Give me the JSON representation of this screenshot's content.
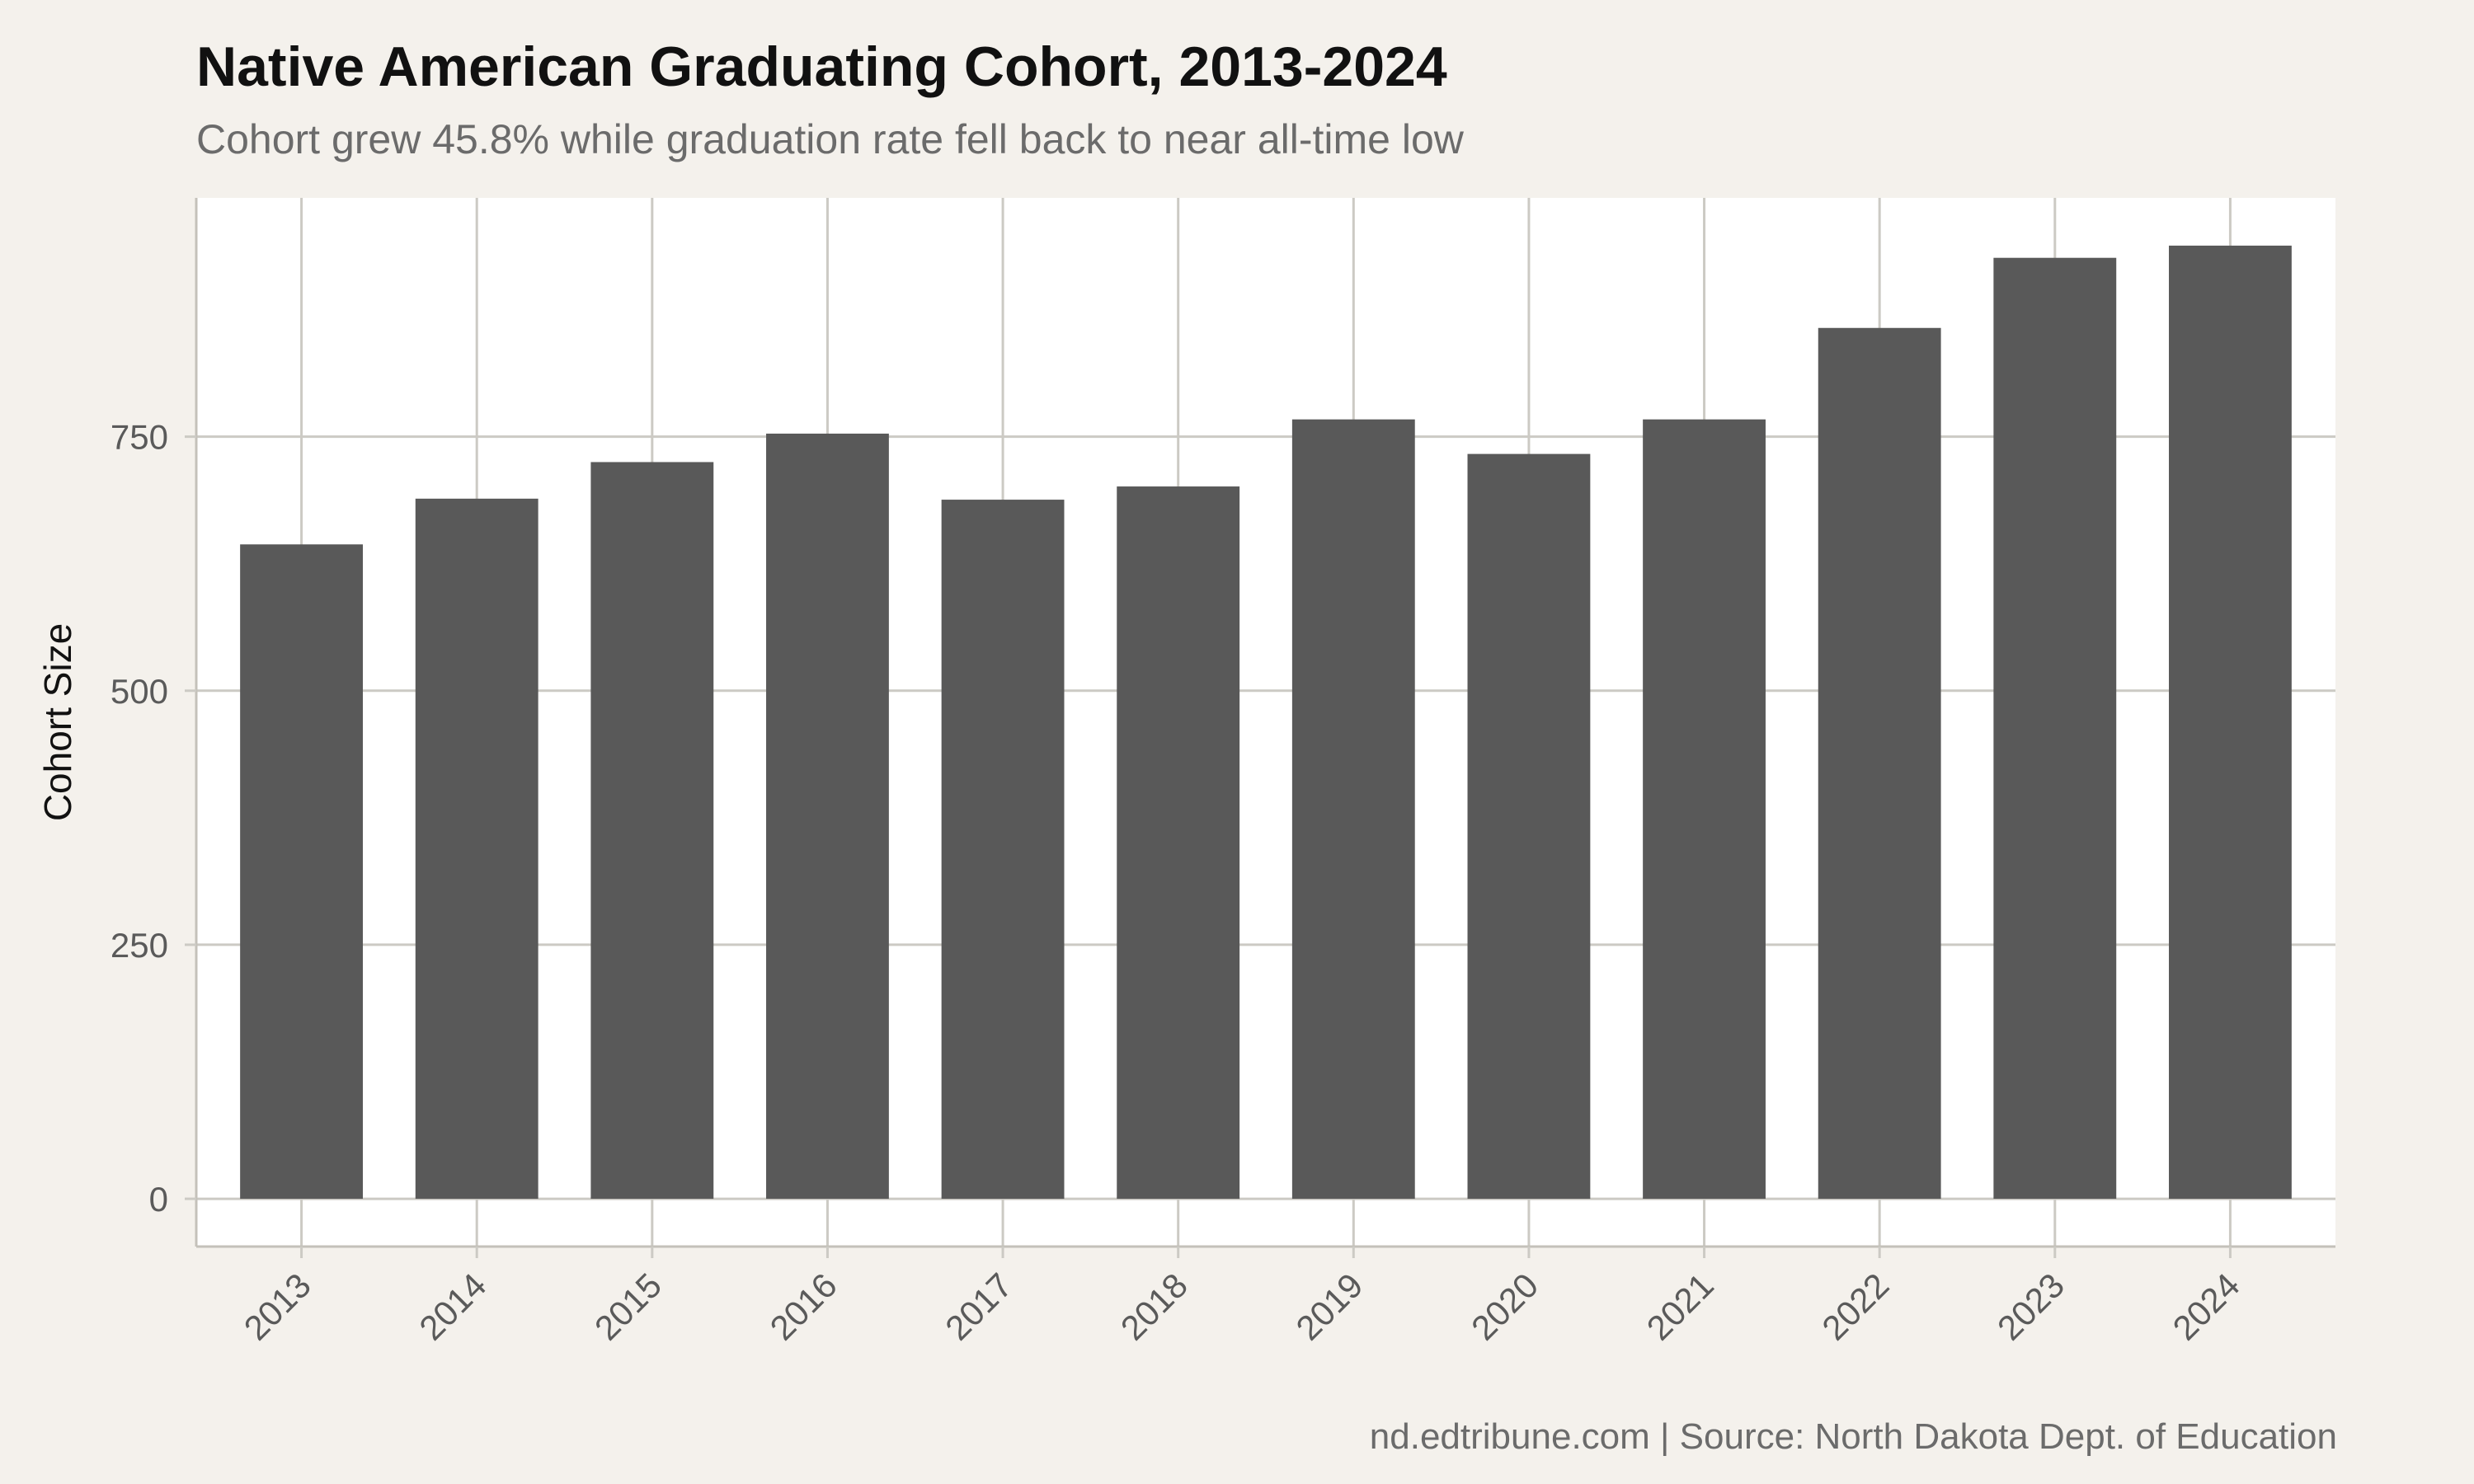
{
  "chart_data": {
    "type": "bar",
    "title": "Native American Graduating Cohort, 2013-2024",
    "subtitle": "Cohort grew 45.8% while graduation rate fell back to near all-time low",
    "xlabel": "",
    "ylabel": "Cohort Size",
    "caption": "nd.edtribune.com | Source: North Dakota Dept. of Education",
    "categories": [
      "2013",
      "2014",
      "2015",
      "2016",
      "2017",
      "2018",
      "2019",
      "2020",
      "2021",
      "2022",
      "2023",
      "2024"
    ],
    "values": [
      644,
      689,
      725,
      753,
      688,
      701,
      767,
      733,
      767,
      857,
      926,
      938
    ],
    "ylim": [
      -47,
      985
    ],
    "yticks": [
      0,
      250,
      500,
      750
    ],
    "grid": true,
    "colors": {
      "bar": "#595959",
      "panel": "#ffffff",
      "background": "#f4f1ec",
      "grid": "#cccac4"
    }
  }
}
